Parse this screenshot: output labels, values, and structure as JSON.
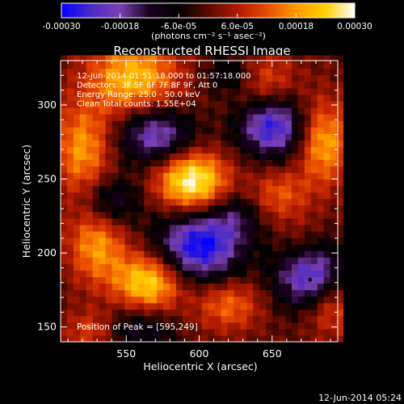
{
  "chart_data": {
    "type": "heatmap",
    "title": "Reconstructed RHESSI Image",
    "xlabel": "Heliocentric X (arcsec)",
    "ylabel": "Heliocentric Y (arcsec)",
    "xlim": [
      505,
      695
    ],
    "ylim": [
      140,
      330
    ],
    "x_ticks": [
      550,
      600,
      650
    ],
    "y_ticks": [
      150,
      200,
      250,
      300
    ],
    "annotation_lines": [
      "12-Jun-2014 01:51:18.000 to 01:57:18.000",
      "Detectors: 3F 5F 6F 7F 8F 9F, Att 0",
      "Energy Range: 25.0 - 50.0 keV",
      "Clean     Total counts: 1.55E+04"
    ],
    "peak_label": "Position of Peak = [595,249]",
    "peak_position": [
      595,
      249
    ],
    "footer_timestamp": "12-Jun-2014 05:24",
    "colorbar": {
      "range": [
        -0.0003,
        0.0003
      ],
      "tick_labels": [
        "-0.00030",
        "-0.00018",
        "-6.0e-05",
        "6.0e-05",
        "0.00018",
        "0.00030"
      ],
      "tick_values": [
        -0.0003,
        -0.00018,
        -6e-05,
        6e-05,
        0.00018,
        0.0003
      ],
      "units_label": "(photons cm⁻² s⁻¹ asec⁻²)"
    },
    "colormap": [
      "#0000ff",
      "#4a2ac8",
      "#7a3fb0",
      "#1a0020",
      "#000000",
      "#5a0a00",
      "#b01a00",
      "#e84a00",
      "#ff9a00",
      "#ffd000",
      "#ffffff"
    ],
    "sources": [
      {
        "x": 555,
        "y": 318,
        "sx": 22,
        "sy": 18,
        "amp": 0.00022
      },
      {
        "x": 640,
        "y": 318,
        "sx": 16,
        "sy": 12,
        "amp": 0.00016
      },
      {
        "x": 520,
        "y": 270,
        "sx": 14,
        "sy": 22,
        "amp": 0.00018
      },
      {
        "x": 595,
        "y": 249,
        "sx": 17,
        "sy": 14,
        "amp": 0.0003
      },
      {
        "x": 685,
        "y": 275,
        "sx": 12,
        "sy": 20,
        "amp": 0.0002
      },
      {
        "x": 655,
        "y": 240,
        "sx": 14,
        "sy": 12,
        "amp": 0.00012
      },
      {
        "x": 530,
        "y": 205,
        "sx": 14,
        "sy": 18,
        "amp": 0.00018
      },
      {
        "x": 565,
        "y": 180,
        "sx": 16,
        "sy": 14,
        "amp": 0.00026
      },
      {
        "x": 620,
        "y": 165,
        "sx": 16,
        "sy": 12,
        "amp": 0.00014
      },
      {
        "x": 690,
        "y": 165,
        "sx": 14,
        "sy": 14,
        "amp": 0.00014
      },
      {
        "x": 525,
        "y": 148,
        "sx": 12,
        "sy": 10,
        "amp": 0.0001
      },
      {
        "x": 670,
        "y": 200,
        "sx": 12,
        "sy": 16,
        "amp": 8e-05
      },
      {
        "x": 570,
        "y": 280,
        "sx": 18,
        "sy": 14,
        "amp": -0.00022
      },
      {
        "x": 650,
        "y": 285,
        "sx": 16,
        "sy": 14,
        "amp": -0.00026
      },
      {
        "x": 600,
        "y": 205,
        "sx": 20,
        "sy": 16,
        "amp": -0.0003
      },
      {
        "x": 675,
        "y": 185,
        "sx": 16,
        "sy": 16,
        "amp": -0.0003
      },
      {
        "x": 540,
        "y": 235,
        "sx": 14,
        "sy": 12,
        "amp": -0.00014
      },
      {
        "x": 625,
        "y": 320,
        "sx": 14,
        "sy": 10,
        "amp": -0.00016
      },
      {
        "x": 560,
        "y": 150,
        "sx": 16,
        "sy": 12,
        "amp": -0.00012
      },
      {
        "x": 625,
        "y": 225,
        "sx": 12,
        "sy": 12,
        "amp": -0.0001
      }
    ]
  }
}
